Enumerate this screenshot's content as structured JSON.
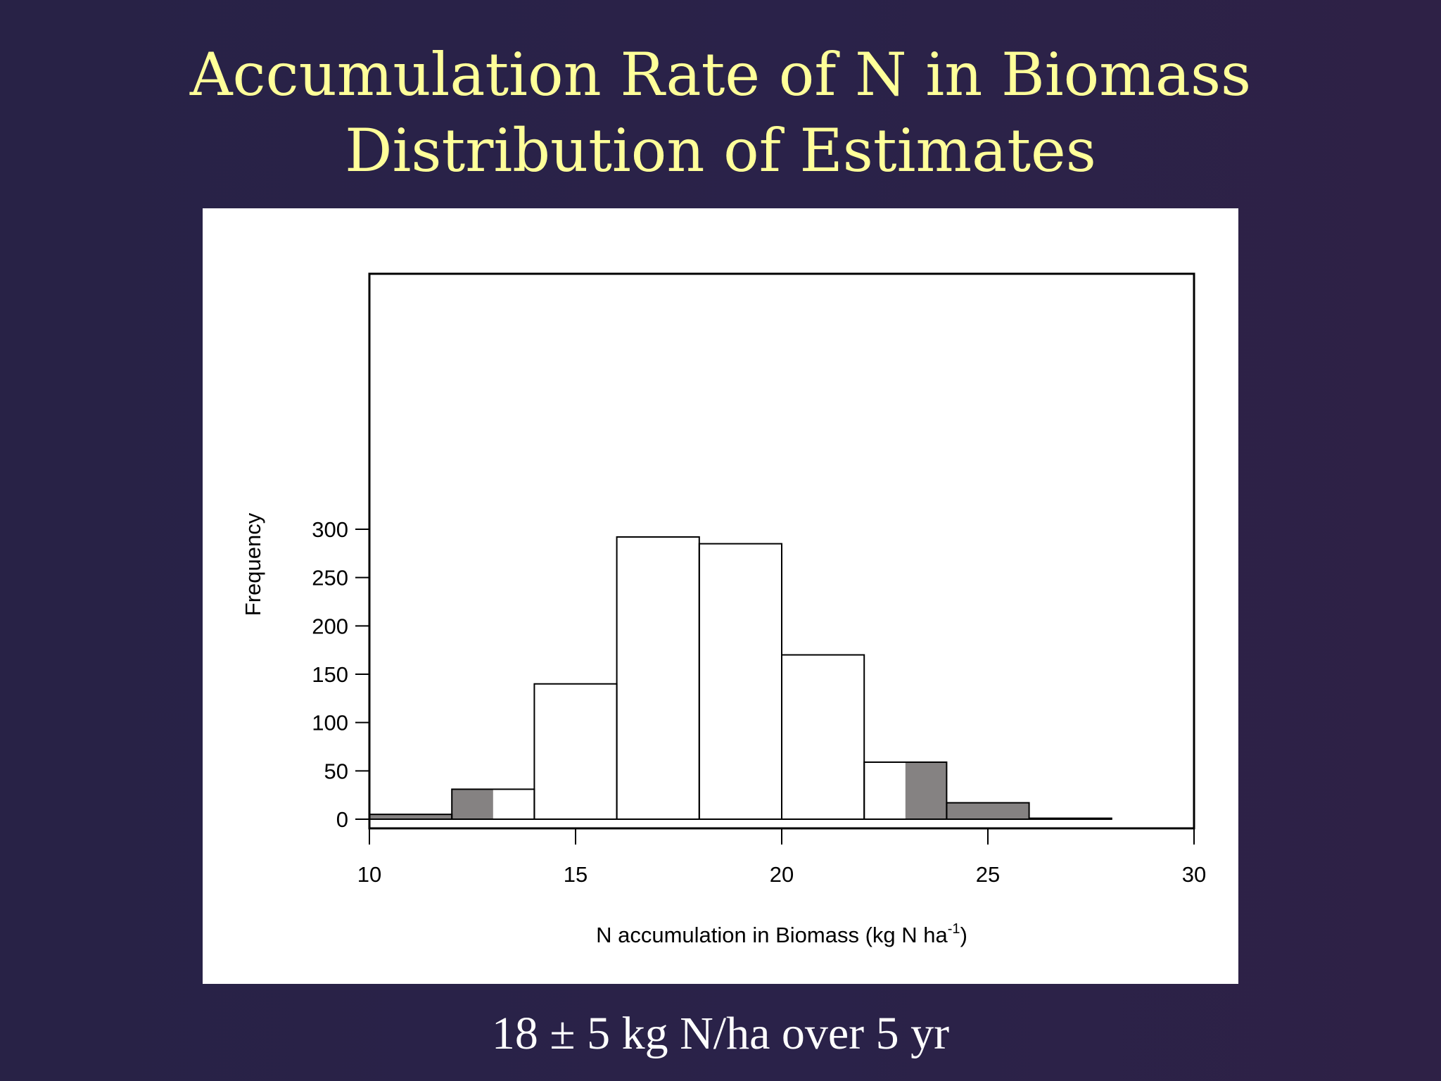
{
  "slide": {
    "title_line1": "Accumulation Rate of N in Biomass",
    "title_line2": "Distribution of Estimates",
    "footer": "18 ± 5 kg N/ha over 5 yr"
  },
  "colors": {
    "background": "#2a2249",
    "title": "#ffff99",
    "bar_fill": "#ffffff",
    "bar_shaded": "#858282",
    "axis": "#000000"
  },
  "chart_data": {
    "type": "bar",
    "title": "",
    "xlabel": "N accumulation in Biomass (kg N ha",
    "xlabel_superscript": "-1",
    "xlabel_suffix": ")",
    "ylabel": "Frequency",
    "xlim": [
      10,
      30
    ],
    "ylim": [
      0,
      325
    ],
    "x_ticks": [
      10,
      15,
      20,
      25,
      30
    ],
    "y_ticks": [
      0,
      50,
      100,
      150,
      200,
      250,
      300
    ],
    "grid": false,
    "legend": "none",
    "bins": [
      {
        "x0": 10,
        "x1": 12,
        "value": 5
      },
      {
        "x0": 12,
        "x1": 14,
        "value": 31
      },
      {
        "x0": 14,
        "x1": 16,
        "value": 140
      },
      {
        "x0": 16,
        "x1": 18,
        "value": 292
      },
      {
        "x0": 18,
        "x1": 20,
        "value": 285
      },
      {
        "x0": 20,
        "x1": 22,
        "value": 170
      },
      {
        "x0": 22,
        "x1": 24,
        "value": 59
      },
      {
        "x0": 24,
        "x1": 26,
        "value": 17
      },
      {
        "x0": 26,
        "x1": 28,
        "value": 1
      },
      {
        "x0": 28,
        "x1": 30,
        "value": 0
      }
    ],
    "shaded_ranges": [
      [
        10,
        13
      ],
      [
        23,
        30
      ]
    ]
  }
}
